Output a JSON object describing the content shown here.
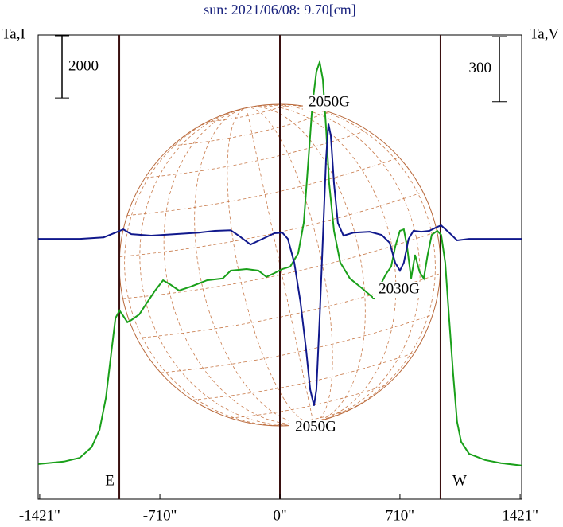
{
  "chart_data": {
    "type": "line",
    "title": "sun: 2021/06/08: 9.70[cm]",
    "ylabel": "Ta,I",
    "y2label": "Ta,V",
    "xlim": [
      -1430,
      1430
    ],
    "xticks": [
      {
        "value": -1421,
        "label": "-1421\""
      },
      {
        "value": -710,
        "label": "-710\""
      },
      {
        "value": 0,
        "label": "0\""
      },
      {
        "value": 710,
        "label": "710\""
      },
      {
        "value": 1421,
        "label": "1421\""
      }
    ],
    "ylim": [
      -1130,
      13800
    ],
    "y2lim": [
      -1200,
      940
    ],
    "y_scale_bar": 2000,
    "y2_scale_bar": 300,
    "disk_radius": 950,
    "vlines": [
      {
        "label": "E",
        "value": -950
      },
      {
        "value": 0
      },
      {
        "label": "W",
        "value": 950
      }
    ],
    "annotations": [
      "2050G",
      "2050G",
      "2030G"
    ],
    "series": [
      {
        "name": "I",
        "color": "#1aa01a",
        "x": [
          -1429,
          -1278,
          -1184,
          -1114,
          -1067,
          -1029,
          -996,
          -973,
          -949,
          -926,
          -902,
          -879,
          -832,
          -785,
          -738,
          -691,
          -644,
          -597,
          -526,
          -432,
          -338,
          -291,
          -197,
          -127,
          -80,
          -33,
          14,
          61,
          108,
          141,
          169,
          193,
          216,
          235,
          254,
          273,
          291,
          320,
          357,
          414,
          484,
          555,
          625,
          658,
          682,
          710,
          733,
          752,
          776,
          799,
          827,
          851,
          874,
          898,
          931,
          954,
          978,
          1001,
          1025,
          1048,
          1072,
          1119,
          1213,
          1307,
          1429
        ],
        "values": [
          0,
          80,
          200,
          540,
          1100,
          2130,
          3660,
          4690,
          4940,
          4760,
          4560,
          4630,
          4810,
          5200,
          5580,
          5910,
          5760,
          5580,
          5710,
          5910,
          5970,
          6220,
          6270,
          6220,
          6020,
          6140,
          6270,
          6350,
          6780,
          7760,
          9810,
          11600,
          12620,
          12930,
          12370,
          10830,
          9040,
          7500,
          6480,
          5970,
          5660,
          5330,
          6090,
          6350,
          6990,
          7500,
          7550,
          6990,
          5970,
          6730,
          6170,
          5970,
          6730,
          7370,
          7500,
          7370,
          6480,
          4690,
          2890,
          1360,
          720,
          330,
          130,
          30,
          -50
        ]
      },
      {
        "name": "V",
        "color": "#10188c",
        "axis": "y2",
        "x": [
          -1429,
          -1184,
          -1043,
          -973,
          -926,
          -879,
          -761,
          -620,
          -479,
          -385,
          -291,
          -244,
          -174,
          -103,
          -33,
          14,
          47,
          85,
          122,
          155,
          179,
          202,
          216,
          235,
          254,
          273,
          287,
          301,
          320,
          343,
          376,
          437,
          531,
          602,
          649,
          682,
          710,
          733,
          761,
          790,
          837,
          884,
          931,
          954,
          1001,
          1048,
          1119,
          1260,
          1429
        ],
        "values": [
          0,
          0,
          7,
          29,
          44,
          22,
          15,
          22,
          29,
          37,
          40,
          15,
          -26,
          0,
          26,
          29,
          0,
          -110,
          -293,
          -512,
          -695,
          -769,
          -695,
          -366,
          0,
          366,
          531,
          476,
          256,
          73,
          15,
          29,
          33,
          18,
          -18,
          -110,
          -146,
          -110,
          0,
          37,
          33,
          37,
          55,
          62,
          29,
          -7,
          0,
          0,
          0
        ]
      }
    ]
  }
}
